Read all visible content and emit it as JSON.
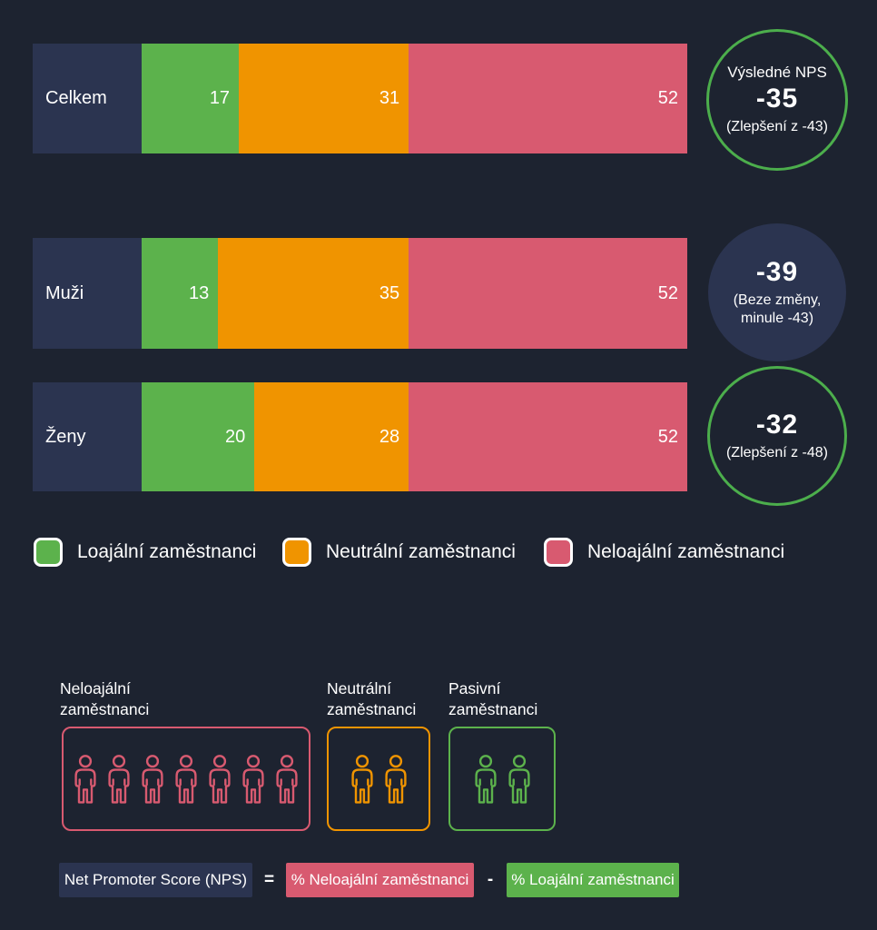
{
  "colors": {
    "background": "#1d2330",
    "panel_navy": "#2b3450",
    "green": "#5cb24c",
    "orange": "#f09400",
    "pink": "#d85a70",
    "ring_green": "#4cae4c",
    "text": "#ffffff"
  },
  "chart_data": {
    "type": "bar",
    "orientation": "horizontal",
    "stacked": true,
    "grid": false,
    "xlim": [
      0,
      100
    ],
    "legend_position": "bottom",
    "categories": [
      "Celkem",
      "Muži",
      "Ženy"
    ],
    "series": [
      {
        "name": "Loajální zaměstnanci",
        "color": "#5cb24c",
        "values": [
          17,
          13,
          20
        ]
      },
      {
        "name": "Neutrální zaměstnanci",
        "color": "#f09400",
        "values": [
          31,
          35,
          28
        ]
      },
      {
        "name": "Neloajální zaměstnanci",
        "color": "#d85a70",
        "values": [
          52,
          52,
          52
        ]
      }
    ],
    "badges": [
      {
        "title": "Výsledné NPS",
        "value": "-35",
        "note": "(Zlepšení z -43)",
        "style": "ring"
      },
      {
        "title": "",
        "value": "-39",
        "note": "(Beze změny, minule -43)",
        "style": "filled"
      },
      {
        "title": "",
        "value": "-32",
        "note": "(Zlepšení z -48)",
        "style": "ring"
      }
    ]
  },
  "legend": [
    {
      "label": "Loajální zaměstnanci",
      "color": "#5cb24c"
    },
    {
      "label": "Neutrální zaměstnanci",
      "color": "#f09400"
    },
    {
      "label": "Neloajální zaměstnanci",
      "color": "#d85a70"
    }
  ],
  "groups": [
    {
      "label_lines": [
        "Neloajální",
        "zaměstnanci"
      ],
      "count": 7,
      "color": "#d85a70"
    },
    {
      "label_lines": [
        "Neutrální",
        "zaměstnanci"
      ],
      "count": 2,
      "color": "#f09400"
    },
    {
      "label_lines": [
        "Pasivní",
        "zaměstnanci"
      ],
      "count": 2,
      "color": "#5cb24c"
    }
  ],
  "formula": {
    "lhs": "Net Promoter Score (NPS)",
    "equals": "=",
    "detractors": "% Neloajální zaměstnanci",
    "minus": "-",
    "promoters": "% Loajální zaměstnanci"
  }
}
